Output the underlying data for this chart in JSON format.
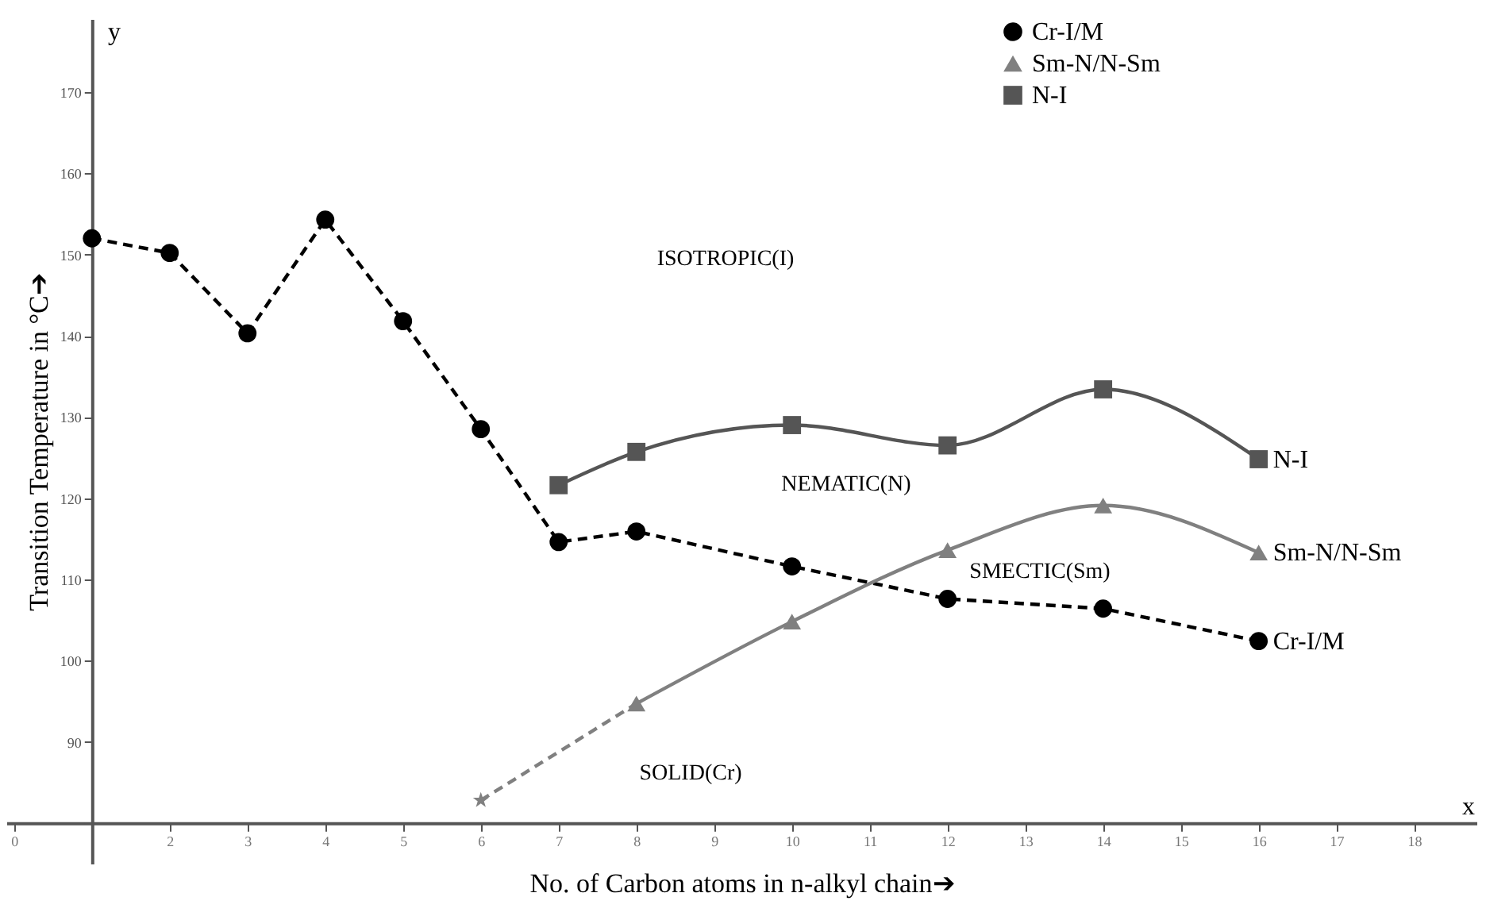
{
  "chart_data": {
    "type": "line",
    "xlabel": "No. of Carbon atoms in n-alkyl chain➔",
    "ylabel": "Transition Temperature in °C➔",
    "xlim": [
      -0.1,
      18.8
    ],
    "xticks": [
      0,
      {
        "value": 1,
        "label": null
      },
      2,
      3,
      4,
      5,
      6,
      7,
      8,
      9,
      10,
      11,
      12,
      13,
      14,
      15,
      16,
      17,
      18
    ],
    "ylim": [
      75,
      179
    ],
    "yticks": [
      {
        "value": 80,
        "label": null
      },
      90,
      100,
      110,
      120,
      130,
      140,
      150,
      160,
      170
    ],
    "grid": false,
    "legend": "top right",
    "series": [
      {
        "name": "Cr-I/M",
        "color": "#000000",
        "x": [
          1,
          2,
          3,
          4,
          5,
          6,
          7,
          8,
          10,
          12,
          14,
          16
        ],
        "values": [
          152,
          150.2,
          140.3,
          154.3,
          141.8,
          128.5,
          114.6,
          115.9,
          111.6,
          107.6,
          106.4,
          102.4
        ],
        "marker": "circle",
        "line_style": "dashed"
      },
      {
        "color": "#808080",
        "x": [
          6,
          8
        ],
        "values": [
          82.8,
          94.7
        ],
        "line_style": "dashed"
      },
      {
        "type": "scatter",
        "color": "#808080",
        "x": [
          6
        ],
        "values": [
          82.8
        ],
        "marker": "star"
      },
      {
        "name": "Sm-N/N-Sm",
        "color": "#808080",
        "x": [
          8,
          10,
          12,
          14,
          16
        ],
        "values": [
          94.7,
          104.8,
          113.6,
          119.1,
          113.3
        ],
        "marker": "triangle",
        "line_style": "solid"
      },
      {
        "name": "N-I",
        "color": "#555555",
        "x": [
          7,
          8,
          10,
          12,
          14,
          16
        ],
        "values": [
          121.6,
          125.7,
          129,
          126.5,
          133.4,
          124.8
        ],
        "marker": "square",
        "line_style": "solid"
      }
    ],
    "annotations": [
      "ISOTROPIC(I)",
      "NEMATIC(N)",
      "SMECTIC(Sm)",
      "SOLID(Cr)",
      "x",
      "y"
    ]
  }
}
